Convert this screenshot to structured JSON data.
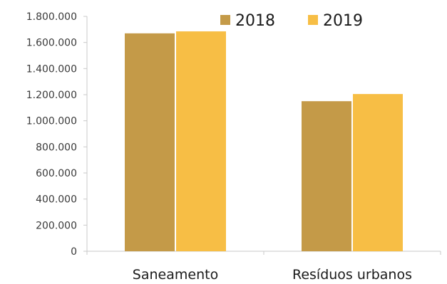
{
  "chart_data": {
    "type": "bar",
    "title": "",
    "xlabel": "",
    "ylabel": "",
    "categories": [
      "Saneamento",
      "Resíduos urbanos"
    ],
    "series": [
      {
        "name": "2018",
        "values": [
          1670000,
          1150000
        ],
        "color": "#C49A48"
      },
      {
        "name": "2019",
        "values": [
          1685000,
          1205000
        ],
        "color": "#F7BE45"
      }
    ],
    "ylim": [
      0,
      1800000
    ],
    "y_ticks": [
      0,
      200000,
      400000,
      600000,
      800000,
      1000000,
      1200000,
      1400000,
      1600000,
      1800000
    ],
    "y_tick_labels": [
      "0",
      "200.000",
      "400.000",
      "600.000",
      "800.000",
      "1.000.000",
      "1.200.000",
      "1.400.000",
      "1.600.000",
      "1.800.000"
    ],
    "grid": false,
    "legend_position": "top-right"
  }
}
